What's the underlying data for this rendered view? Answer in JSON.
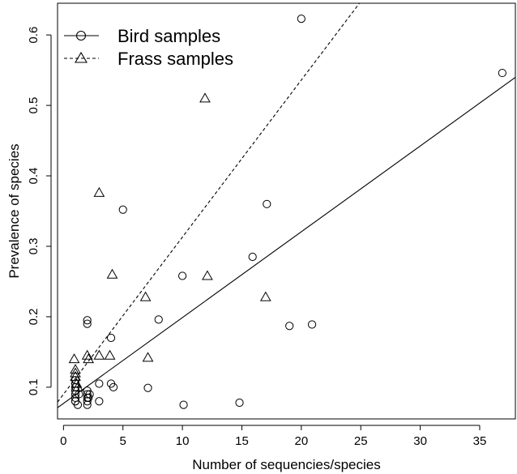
{
  "chart_data": {
    "type": "scatter",
    "xlabel": "Number of sequencies/species",
    "ylabel": "Prevalence of species",
    "xlim": [
      -0.5,
      38
    ],
    "ylim": [
      0.055,
      0.645
    ],
    "xticks": [
      0,
      5,
      10,
      15,
      20,
      25,
      30,
      35
    ],
    "yticks": [
      0.1,
      0.2,
      0.3,
      0.4,
      0.5,
      0.6
    ],
    "xtick_labels": [
      "0",
      "5",
      "10",
      "15",
      "20",
      "25",
      "30",
      "35"
    ],
    "ytick_labels": [
      "0.1",
      "0.2",
      "0.3",
      "0.4",
      "0.5",
      "0.6"
    ],
    "legend_position": "top-left",
    "grid": false,
    "series": [
      {
        "name": "Bird samples",
        "marker": "circle",
        "line_style": "solid",
        "fit_line": {
          "intercept": 0.077,
          "slope": 0.01218
        },
        "points": [
          [
            1,
            0.08
          ],
          [
            1,
            0.08
          ],
          [
            1,
            0.085
          ],
          [
            1,
            0.095
          ],
          [
            1,
            0.1
          ],
          [
            1,
            0.105
          ],
          [
            1,
            0.11
          ],
          [
            1,
            0.09
          ],
          [
            1.2,
            0.075
          ],
          [
            1.3,
            0.09
          ],
          [
            2,
            0.19
          ],
          [
            2,
            0.195
          ],
          [
            2,
            0.08
          ],
          [
            2,
            0.085
          ],
          [
            2,
            0.09
          ],
          [
            2,
            0.095
          ],
          [
            2,
            0.075
          ],
          [
            2.1,
            0.085
          ],
          [
            2.2,
            0.09
          ],
          [
            3,
            0.105
          ],
          [
            3,
            0.08
          ],
          [
            4,
            0.17
          ],
          [
            4,
            0.105
          ],
          [
            4.2,
            0.1
          ],
          [
            5,
            0.352
          ],
          [
            7.1,
            0.099
          ],
          [
            8,
            0.196
          ],
          [
            10,
            0.258
          ],
          [
            10.1,
            0.075
          ],
          [
            14.8,
            0.078
          ],
          [
            15.9,
            0.285
          ],
          [
            17.1,
            0.36
          ],
          [
            19,
            0.187
          ],
          [
            20,
            0.623
          ],
          [
            20.9,
            0.189
          ],
          [
            36.9,
            0.546
          ]
        ]
      },
      {
        "name": "Frass samples",
        "marker": "triangle",
        "line_style": "dashed",
        "fit_line": {
          "intercept": 0.09,
          "slope": 0.0223
        },
        "points": [
          [
            0.9,
            0.14
          ],
          [
            1,
            0.125
          ],
          [
            1,
            0.12
          ],
          [
            1,
            0.115
          ],
          [
            1.1,
            0.105
          ],
          [
            1.2,
            0.1
          ],
          [
            2,
            0.145
          ],
          [
            2.1,
            0.14
          ],
          [
            3,
            0.145
          ],
          [
            3,
            0.376
          ],
          [
            3.9,
            0.145
          ],
          [
            4.1,
            0.26
          ],
          [
            6.9,
            0.228
          ],
          [
            7.1,
            0.142
          ],
          [
            11.9,
            0.51
          ],
          [
            12.1,
            0.258
          ],
          [
            17,
            0.228
          ]
        ]
      }
    ]
  }
}
